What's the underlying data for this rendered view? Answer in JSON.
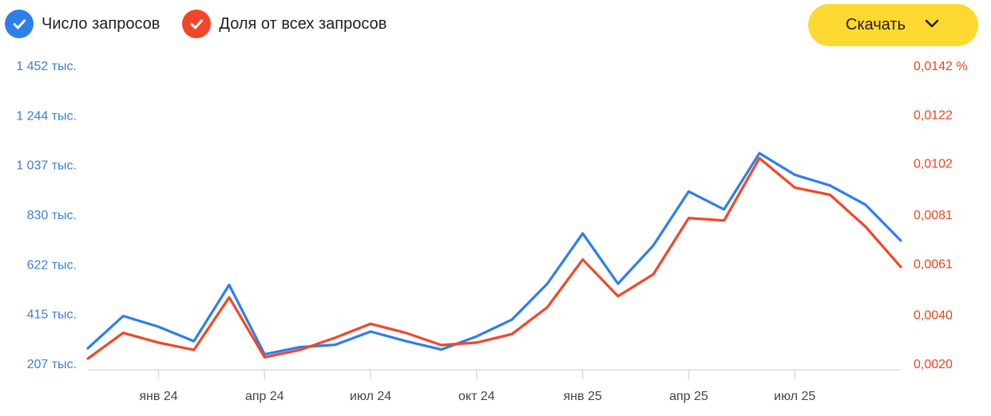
{
  "legend": {
    "series1_label": "Число запросов",
    "series2_label": "Доля от всех запросов",
    "series1_color": "#2d7fe8",
    "series2_color": "#f0472a",
    "check_icon": "checkmark-icon"
  },
  "download": {
    "label": "Скачать",
    "icon": "chevron-down-icon",
    "color": "#fdd831"
  },
  "chart_data": {
    "type": "line",
    "x": [
      "2023-11",
      "2023-12",
      "2024-01",
      "2024-02",
      "2024-03",
      "2024-04",
      "2024-05",
      "2024-06",
      "2024-07",
      "2024-08",
      "2024-09",
      "2024-10",
      "2024-11",
      "2024-12",
      "2025-01",
      "2025-02",
      "2025-03",
      "2025-04",
      "2025-05",
      "2025-06",
      "2025-07",
      "2025-08",
      "2025-09",
      "2025-10"
    ],
    "x_tick_labels": [
      "янв 24",
      "апр 24",
      "июл 24",
      "окт 24",
      "янв 25",
      "апр 25",
      "июл 25"
    ],
    "x_tick_positions": [
      "2024-01",
      "2024-04",
      "2024-07",
      "2024-10",
      "2025-01",
      "2025-04",
      "2025-07"
    ],
    "y_left": {
      "tick_labels": [
        "1 452 тыс.",
        "1 244 тыс.",
        "1 037 тыс.",
        "830 тыс.",
        "622 тыс.",
        "415 тыс.",
        "207 тыс."
      ],
      "tick_values": [
        1452,
        1244,
        1037,
        830,
        622,
        415,
        207
      ],
      "range": [
        207,
        1452
      ],
      "color": "#3f7fd0"
    },
    "y_right": {
      "tick_labels": [
        "0,0142 %",
        "0,0122",
        "0,0102",
        "0,0081",
        "0,0061",
        "0,0040",
        "0,0020"
      ],
      "tick_values": [
        0.0142,
        0.0122,
        0.0102,
        0.0081,
        0.0061,
        0.004,
        0.002
      ],
      "range": [
        0.002,
        0.0142
      ],
      "color": "#e8481f"
    },
    "series": [
      {
        "name": "Число запросов",
        "axis": "left",
        "color": "#2d7fe8",
        "values": [
          270,
          405,
          360,
          300,
          535,
          245,
          275,
          285,
          340,
          300,
          265,
          320,
          390,
          540,
          750,
          540,
          700,
          925,
          850,
          1085,
          995,
          950,
          870,
          720
        ]
      },
      {
        "name": "Доля от всех запросов",
        "axis": "right",
        "color": "#f0472a",
        "values": [
          0.0022,
          0.00325,
          0.00285,
          0.00255,
          0.0047,
          0.00225,
          0.00255,
          0.00305,
          0.00362,
          0.00325,
          0.00275,
          0.00285,
          0.0032,
          0.0043,
          0.00625,
          0.00475,
          0.00565,
          0.00795,
          0.00785,
          0.0104,
          0.0092,
          0.0089,
          0.0076,
          0.00595
        ]
      }
    ],
    "grid": false
  }
}
